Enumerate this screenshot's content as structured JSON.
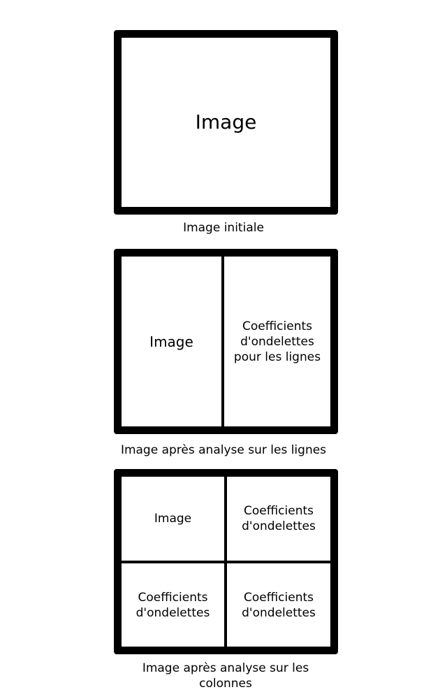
{
  "panel1": {
    "cell": "Image",
    "caption": "Image initiale"
  },
  "panel2": {
    "left": "Image",
    "right": "Coefficients d'ondelettes pour les lignes",
    "caption": "Image après analyse sur les lignes"
  },
  "panel3": {
    "top_left": "Image",
    "top_right": "Coefficients d'ondelettes",
    "bottom_left": "Coefficients d'ondelettes",
    "bottom_right": "Coefficients d'ondelettes",
    "caption": "Image après analyse sur les colonnes"
  }
}
